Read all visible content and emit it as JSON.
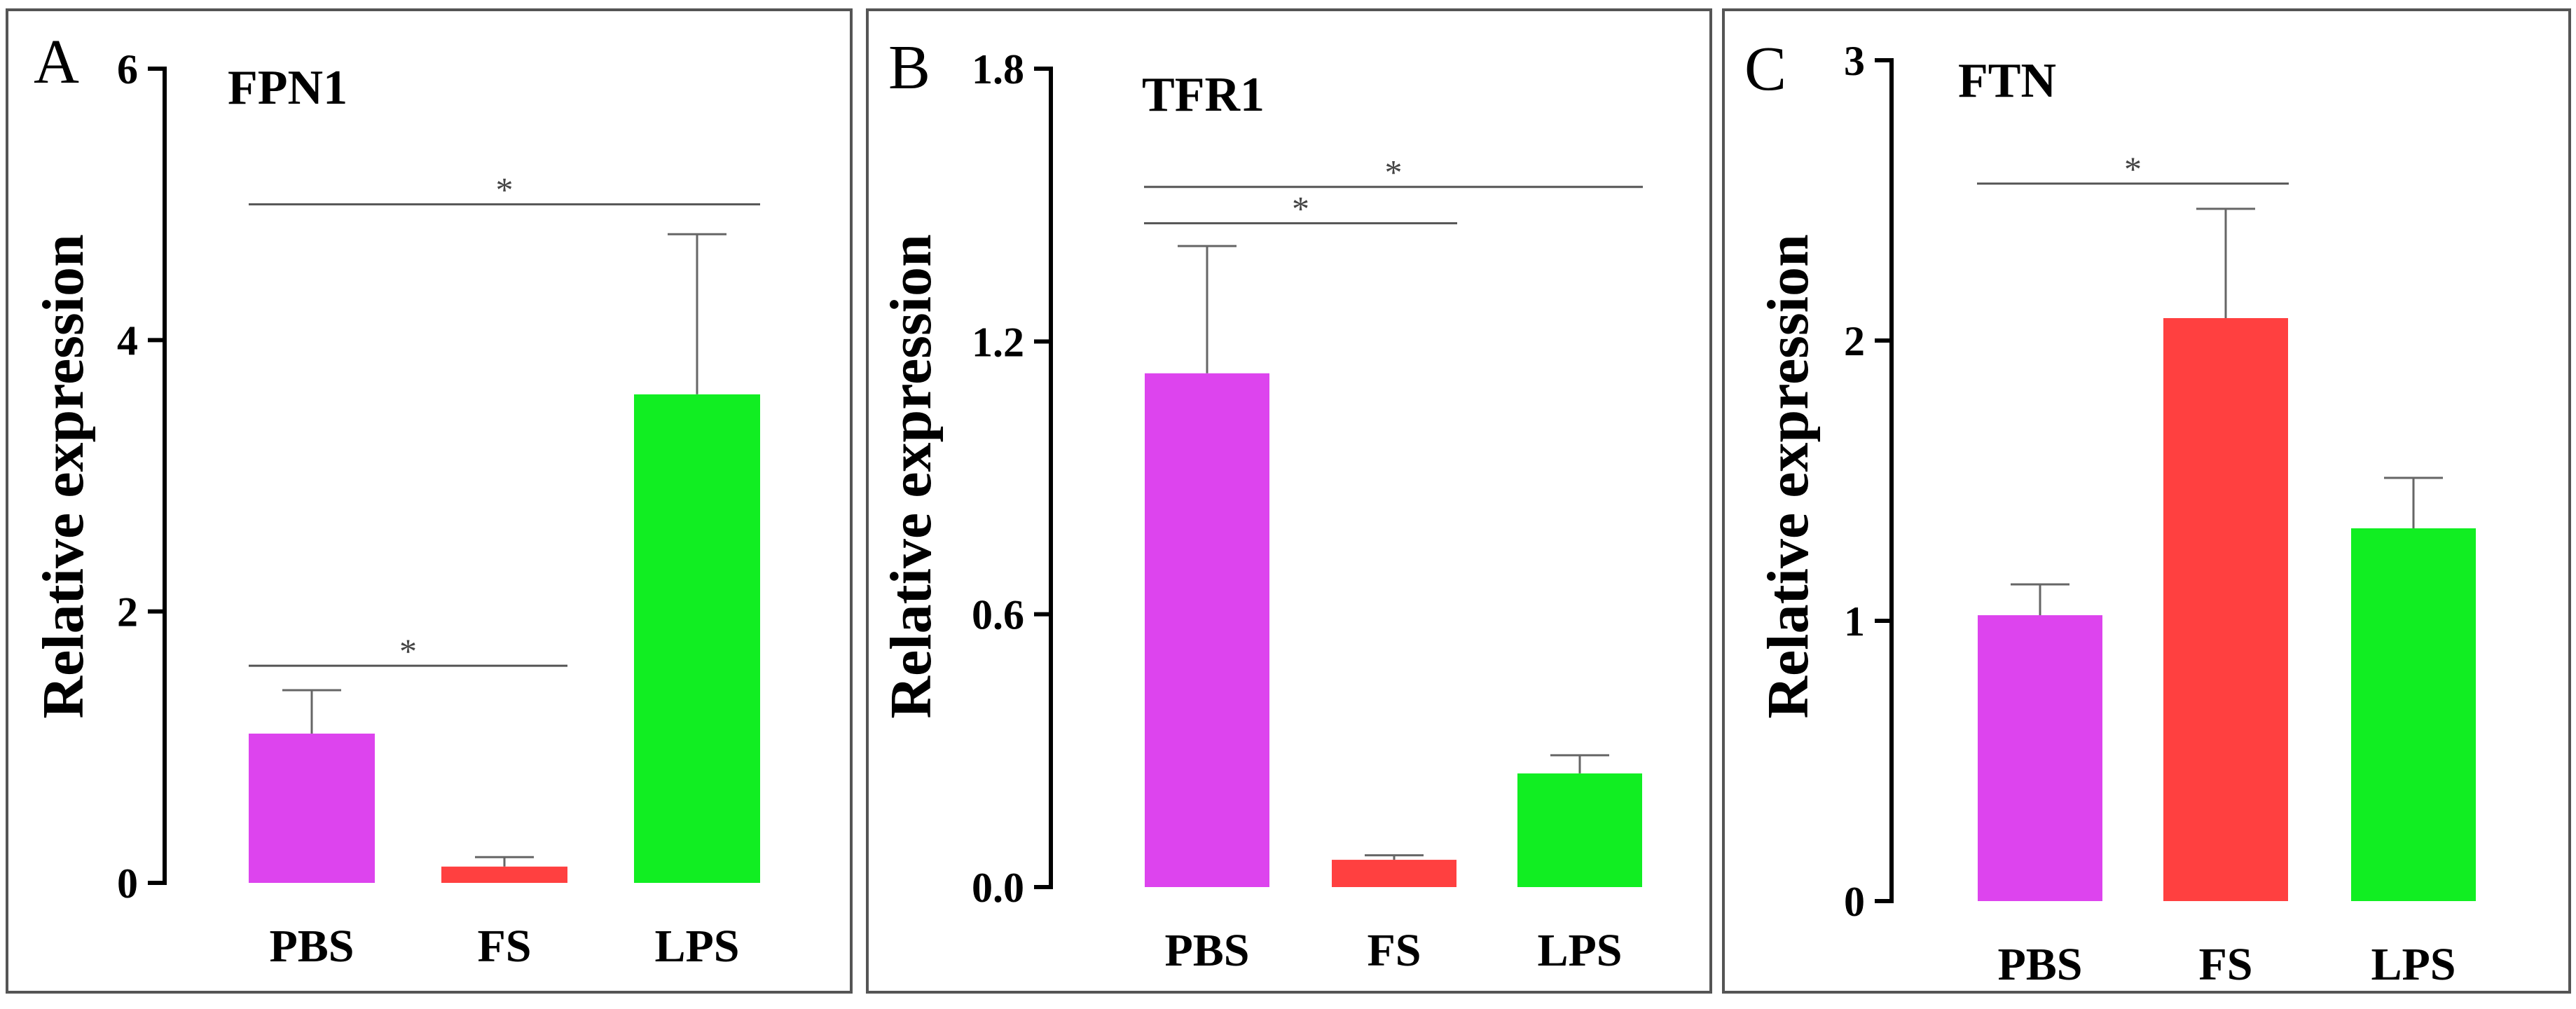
{
  "figure": {
    "ylabel": "Relative expression"
  },
  "colors": {
    "PBS": "#DD44EE",
    "FS": "#FF4040",
    "LPS": "#11EE22",
    "frame": "#555555"
  },
  "chart_data": [
    {
      "type": "bar",
      "letter": "A",
      "title": "FPN1",
      "ylabel": "Relative expression",
      "xlabel": "",
      "categories": [
        "PBS",
        "FS",
        "LPS"
      ],
      "values": [
        1.1,
        0.12,
        3.6
      ],
      "errors": [
        0.32,
        0.07,
        1.18
      ],
      "ylim": [
        0,
        6
      ],
      "yticks": [
        0,
        2,
        4,
        6
      ],
      "ytick_labels": [
        "0",
        "2",
        "4",
        "6"
      ],
      "significance": [
        {
          "from": "PBS",
          "to": "LPS",
          "label": "*",
          "y": 5.0
        },
        {
          "from": "PBS",
          "to": "FS",
          "label": "*",
          "y": 1.6
        }
      ]
    },
    {
      "type": "bar",
      "letter": "B",
      "title": "TFR1",
      "ylabel": "Relative expression",
      "xlabel": "",
      "categories": [
        "PBS",
        "FS",
        "LPS"
      ],
      "values": [
        1.13,
        0.06,
        0.25
      ],
      "errors": [
        0.28,
        0.01,
        0.04
      ],
      "ylim": [
        0,
        1.8
      ],
      "yticks": [
        0,
        0.6,
        1.2,
        1.8
      ],
      "ytick_labels": [
        "0.0",
        "0.6",
        "1.2",
        "1.8"
      ],
      "significance": [
        {
          "from": "PBS",
          "to": "LPS",
          "label": "*",
          "y": 1.54
        },
        {
          "from": "PBS",
          "to": "FS",
          "label": "*",
          "y": 1.46
        }
      ]
    },
    {
      "type": "bar",
      "letter": "C",
      "title": "FTN",
      "ylabel": "Relative expression",
      "xlabel": "",
      "categories": [
        "PBS",
        "FS",
        "LPS"
      ],
      "values": [
        1.02,
        2.08,
        1.33
      ],
      "errors": [
        0.11,
        0.39,
        0.18
      ],
      "ylim": [
        0,
        3
      ],
      "yticks": [
        0,
        1,
        2,
        3
      ],
      "ytick_labels": [
        "0",
        "1",
        "2",
        "3"
      ],
      "significance": [
        {
          "from": "PBS",
          "to": "FS",
          "label": "*",
          "y": 2.56
        }
      ]
    }
  ]
}
